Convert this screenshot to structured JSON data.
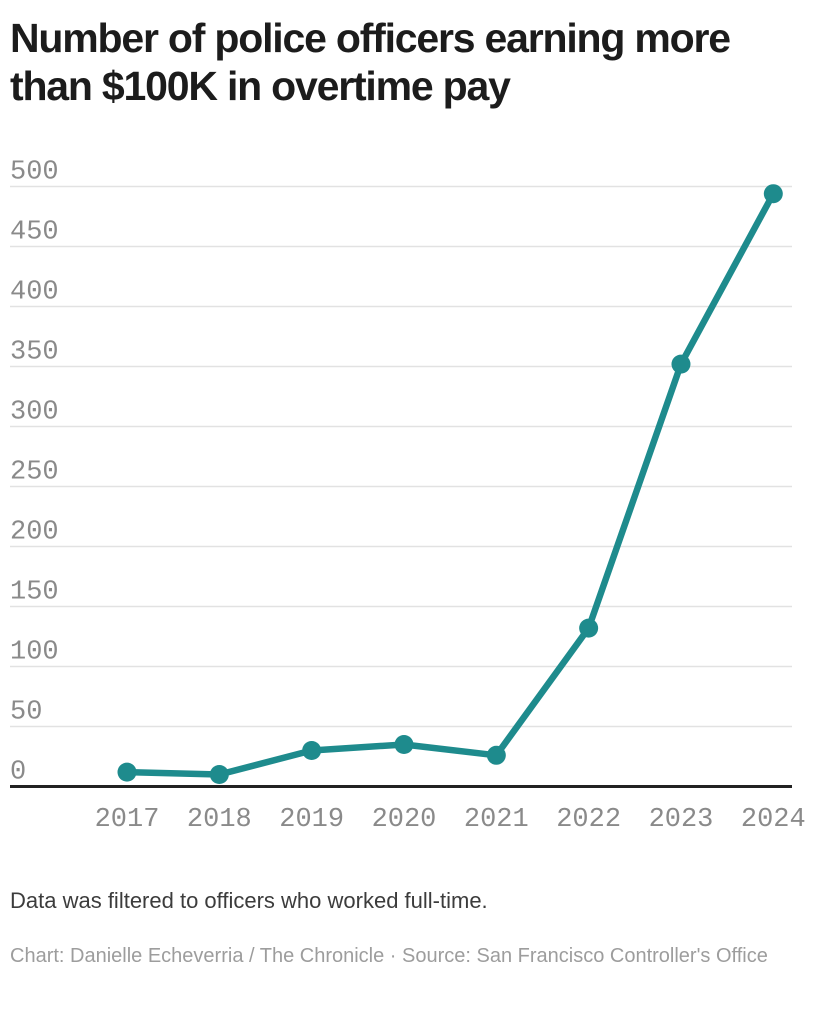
{
  "header": {
    "title_line1": "Number of police officers earning more",
    "title_line2": "than $100K in overtime pay"
  },
  "chart_data": {
    "type": "line",
    "title": "Number of police officers earning more than $100K in overtime pay",
    "categories": [
      "2017",
      "2018",
      "2019",
      "2020",
      "2021",
      "2022",
      "2023",
      "2024"
    ],
    "series": [
      {
        "name": "Officers earning more than $100K in overtime pay",
        "values": [
          12,
          10,
          30,
          35,
          26,
          132,
          352,
          494
        ]
      }
    ],
    "xlabel": "",
    "ylabel": "",
    "ylim": [
      0,
      500
    ],
    "yticks": [
      0,
      50,
      100,
      150,
      200,
      250,
      300,
      350,
      400,
      450,
      500
    ],
    "grid": "horizontal",
    "legend_position": "none",
    "line_color": "#1e8b8d",
    "tick_color": "#8a8a8a",
    "gridline_color": "#e2e2e2",
    "baseline_color": "#222222"
  },
  "footer": {
    "note": "Data was filtered to officers who worked full-time.",
    "credit": "Chart: Danielle Echeverria / The Chronicle · Source: San Francisco Controller's Office"
  }
}
